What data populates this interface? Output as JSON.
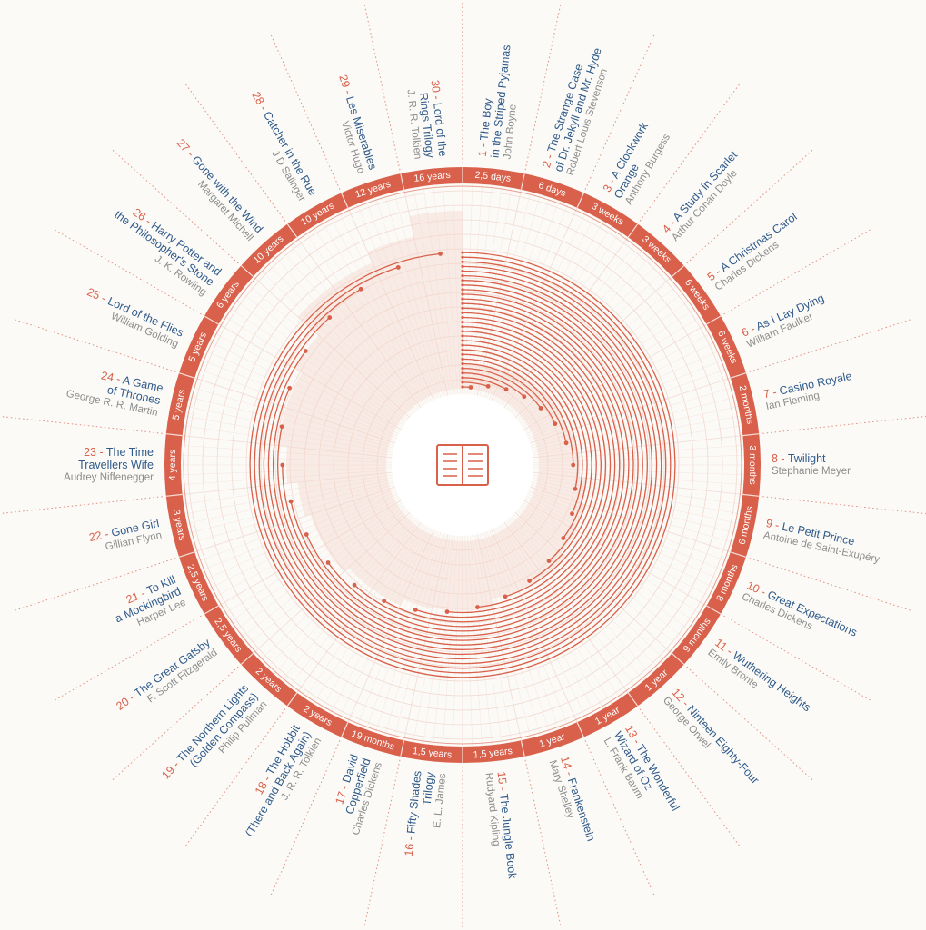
{
  "colors": {
    "accent": "#d9604a",
    "title": "#2f5a8a",
    "author": "#8d8d8d",
    "band": "#f3d7cd",
    "grid": "#f1d9d0"
  },
  "center_icon": "open-book-icon",
  "chart_data": {
    "type": "radial-bar",
    "categories": [
      "The Boy in the Striped Pyjamas",
      "The Strange Case of Dr. Jekyll and Mr. Hyde",
      "A Clockwork Orange",
      "A Study in Scarlet",
      "A Christmas Carol",
      "As I Lay Dying",
      "Casino Royale",
      "Twilight",
      "Le Petit Prince",
      "Great Expectations",
      "Wuthering Heights",
      "Ninteen Eighty-Four",
      "The Wonderful Wizard of Oz",
      "Frankenstein",
      "The Jungle Book",
      "Fifty Shades Trilogy",
      "David Copperfield",
      "The Hobbit (There and Back Again)",
      "The Northern Lights (Golden Compass)",
      "The Great Gatsby",
      "To Kill a Mockingbird",
      "Gone Girl",
      "The Time Travellers Wife",
      "A Game of Thrones",
      "Lord of the Flies",
      "Harry Potter and the Philosopher's Stone",
      "Gone with the Wind",
      "Catcher in the Rue",
      "Les Miserables",
      "Lord of the Rings Trilogy"
    ],
    "series": [
      {
        "values_days": [
          2.5,
          6,
          21,
          21,
          42,
          42,
          60,
          90,
          180,
          240,
          270,
          365,
          365,
          365,
          547,
          547,
          570,
          730,
          730,
          912,
          912,
          1095,
          1460,
          1825,
          1825,
          2190,
          3650,
          3650,
          4380,
          5840
        ]
      }
    ]
  },
  "books": [
    {
      "num": "1",
      "title": [
        "The Boy",
        "in the Striped Pyjamas"
      ],
      "author": "John Boyne",
      "duration": "2,5 days"
    },
    {
      "num": "2",
      "title": [
        "The Strange Case",
        "of Dr. Jekyll and Mr. Hyde"
      ],
      "author": "Robert Louis Stevenson",
      "duration": "6 days"
    },
    {
      "num": "3",
      "title": [
        "A Clockwork",
        "Orange"
      ],
      "author": "Anthony Burgess",
      "duration": "3 weeks"
    },
    {
      "num": "4",
      "title": [
        "A Study in Scarlet"
      ],
      "author": "Arthur Conan Doyle",
      "duration": "3 weeks"
    },
    {
      "num": "5",
      "title": [
        "A Christmas Carol"
      ],
      "author": "Charles Dickens",
      "duration": "6 weeks"
    },
    {
      "num": "6",
      "title": [
        "As I Lay Dying"
      ],
      "author": "William Faulker",
      "duration": "6 weeks"
    },
    {
      "num": "7",
      "title": [
        "Casino Royale"
      ],
      "author": "Ian Fleming",
      "duration": "2 months"
    },
    {
      "num": "8",
      "title": [
        "Twilight"
      ],
      "author": "Stephanie Meyer",
      "duration": "3 months"
    },
    {
      "num": "9",
      "title": [
        "Le Petit Prince"
      ],
      "author": "Antoine de Saint-Exupéry",
      "duration": "6 months"
    },
    {
      "num": "10",
      "title": [
        "Great Expectations"
      ],
      "author": "Charles Dickens",
      "duration": "8 months"
    },
    {
      "num": "11",
      "title": [
        "Wuthering Heights"
      ],
      "author": "Emily Bronte",
      "duration": "9 months"
    },
    {
      "num": "12",
      "title": [
        "Ninteen Eighty-Four"
      ],
      "author": "George Orwel",
      "duration": "1 year"
    },
    {
      "num": "13",
      "title": [
        "The Wonderful",
        "Wizard of Oz"
      ],
      "author": "L. Frank Baum",
      "duration": "1 year"
    },
    {
      "num": "14",
      "title": [
        "Frankenstein"
      ],
      "author": "Mary Shelley",
      "duration": "1 year"
    },
    {
      "num": "15",
      "title": [
        "The Jungle Book"
      ],
      "author": "Rudyard Kipling",
      "duration": "1,5 years"
    },
    {
      "num": "16",
      "title": [
        "Fifty Shades",
        "Trilogy"
      ],
      "author": "E. L. James",
      "duration": "1,5 years"
    },
    {
      "num": "17",
      "title": [
        "David",
        "Copperfield"
      ],
      "author": "Charles Dickens",
      "duration": "19 months"
    },
    {
      "num": "18",
      "title": [
        "The Hobbit",
        "(There and Back Again)"
      ],
      "author": "J. R. R. Tolkien",
      "duration": "2 years"
    },
    {
      "num": "19",
      "title": [
        "The Northern Lights",
        "(Golden Compass)"
      ],
      "author": "Philip Pullman",
      "duration": "2 years"
    },
    {
      "num": "20",
      "title": [
        "The Great Gatsby"
      ],
      "author": "F. Scott Fitzgerald",
      "duration": "2,5 years"
    },
    {
      "num": "21",
      "title": [
        "To Kill",
        "a Mockingbird"
      ],
      "author": "Harper Lee",
      "duration": "2,5 years"
    },
    {
      "num": "22",
      "title": [
        "Gone Girl"
      ],
      "author": "Gillian Flynn",
      "duration": "3 years"
    },
    {
      "num": "23",
      "title": [
        "The Time",
        "Travellers Wife"
      ],
      "author": "Audrey Niffenegger",
      "duration": "4 years"
    },
    {
      "num": "24",
      "title": [
        "A Game",
        "of Thrones"
      ],
      "author": "George R. R. Martin",
      "duration": "5 years"
    },
    {
      "num": "25",
      "title": [
        "Lord of the Flies"
      ],
      "author": "William Golding",
      "duration": "5 years"
    },
    {
      "num": "26",
      "title": [
        "Harry Potter and",
        "the Philosopher's Stone"
      ],
      "author": "J. K. Rowling",
      "duration": "6 years"
    },
    {
      "num": "27",
      "title": [
        "Gone with the Wind"
      ],
      "author": "Margaret Michell",
      "duration": "10 years"
    },
    {
      "num": "28",
      "title": [
        "Catcher in the Rue"
      ],
      "author": "J D Salinger",
      "duration": "10 years"
    },
    {
      "num": "29",
      "title": [
        "Les Miserables"
      ],
      "author": "Victor Hugo",
      "duration": "12 years"
    },
    {
      "num": "30",
      "title": [
        "Lord of the",
        "Rings Trilogy"
      ],
      "author": "J. R. R. Tolkien",
      "duration": "16 years"
    }
  ]
}
